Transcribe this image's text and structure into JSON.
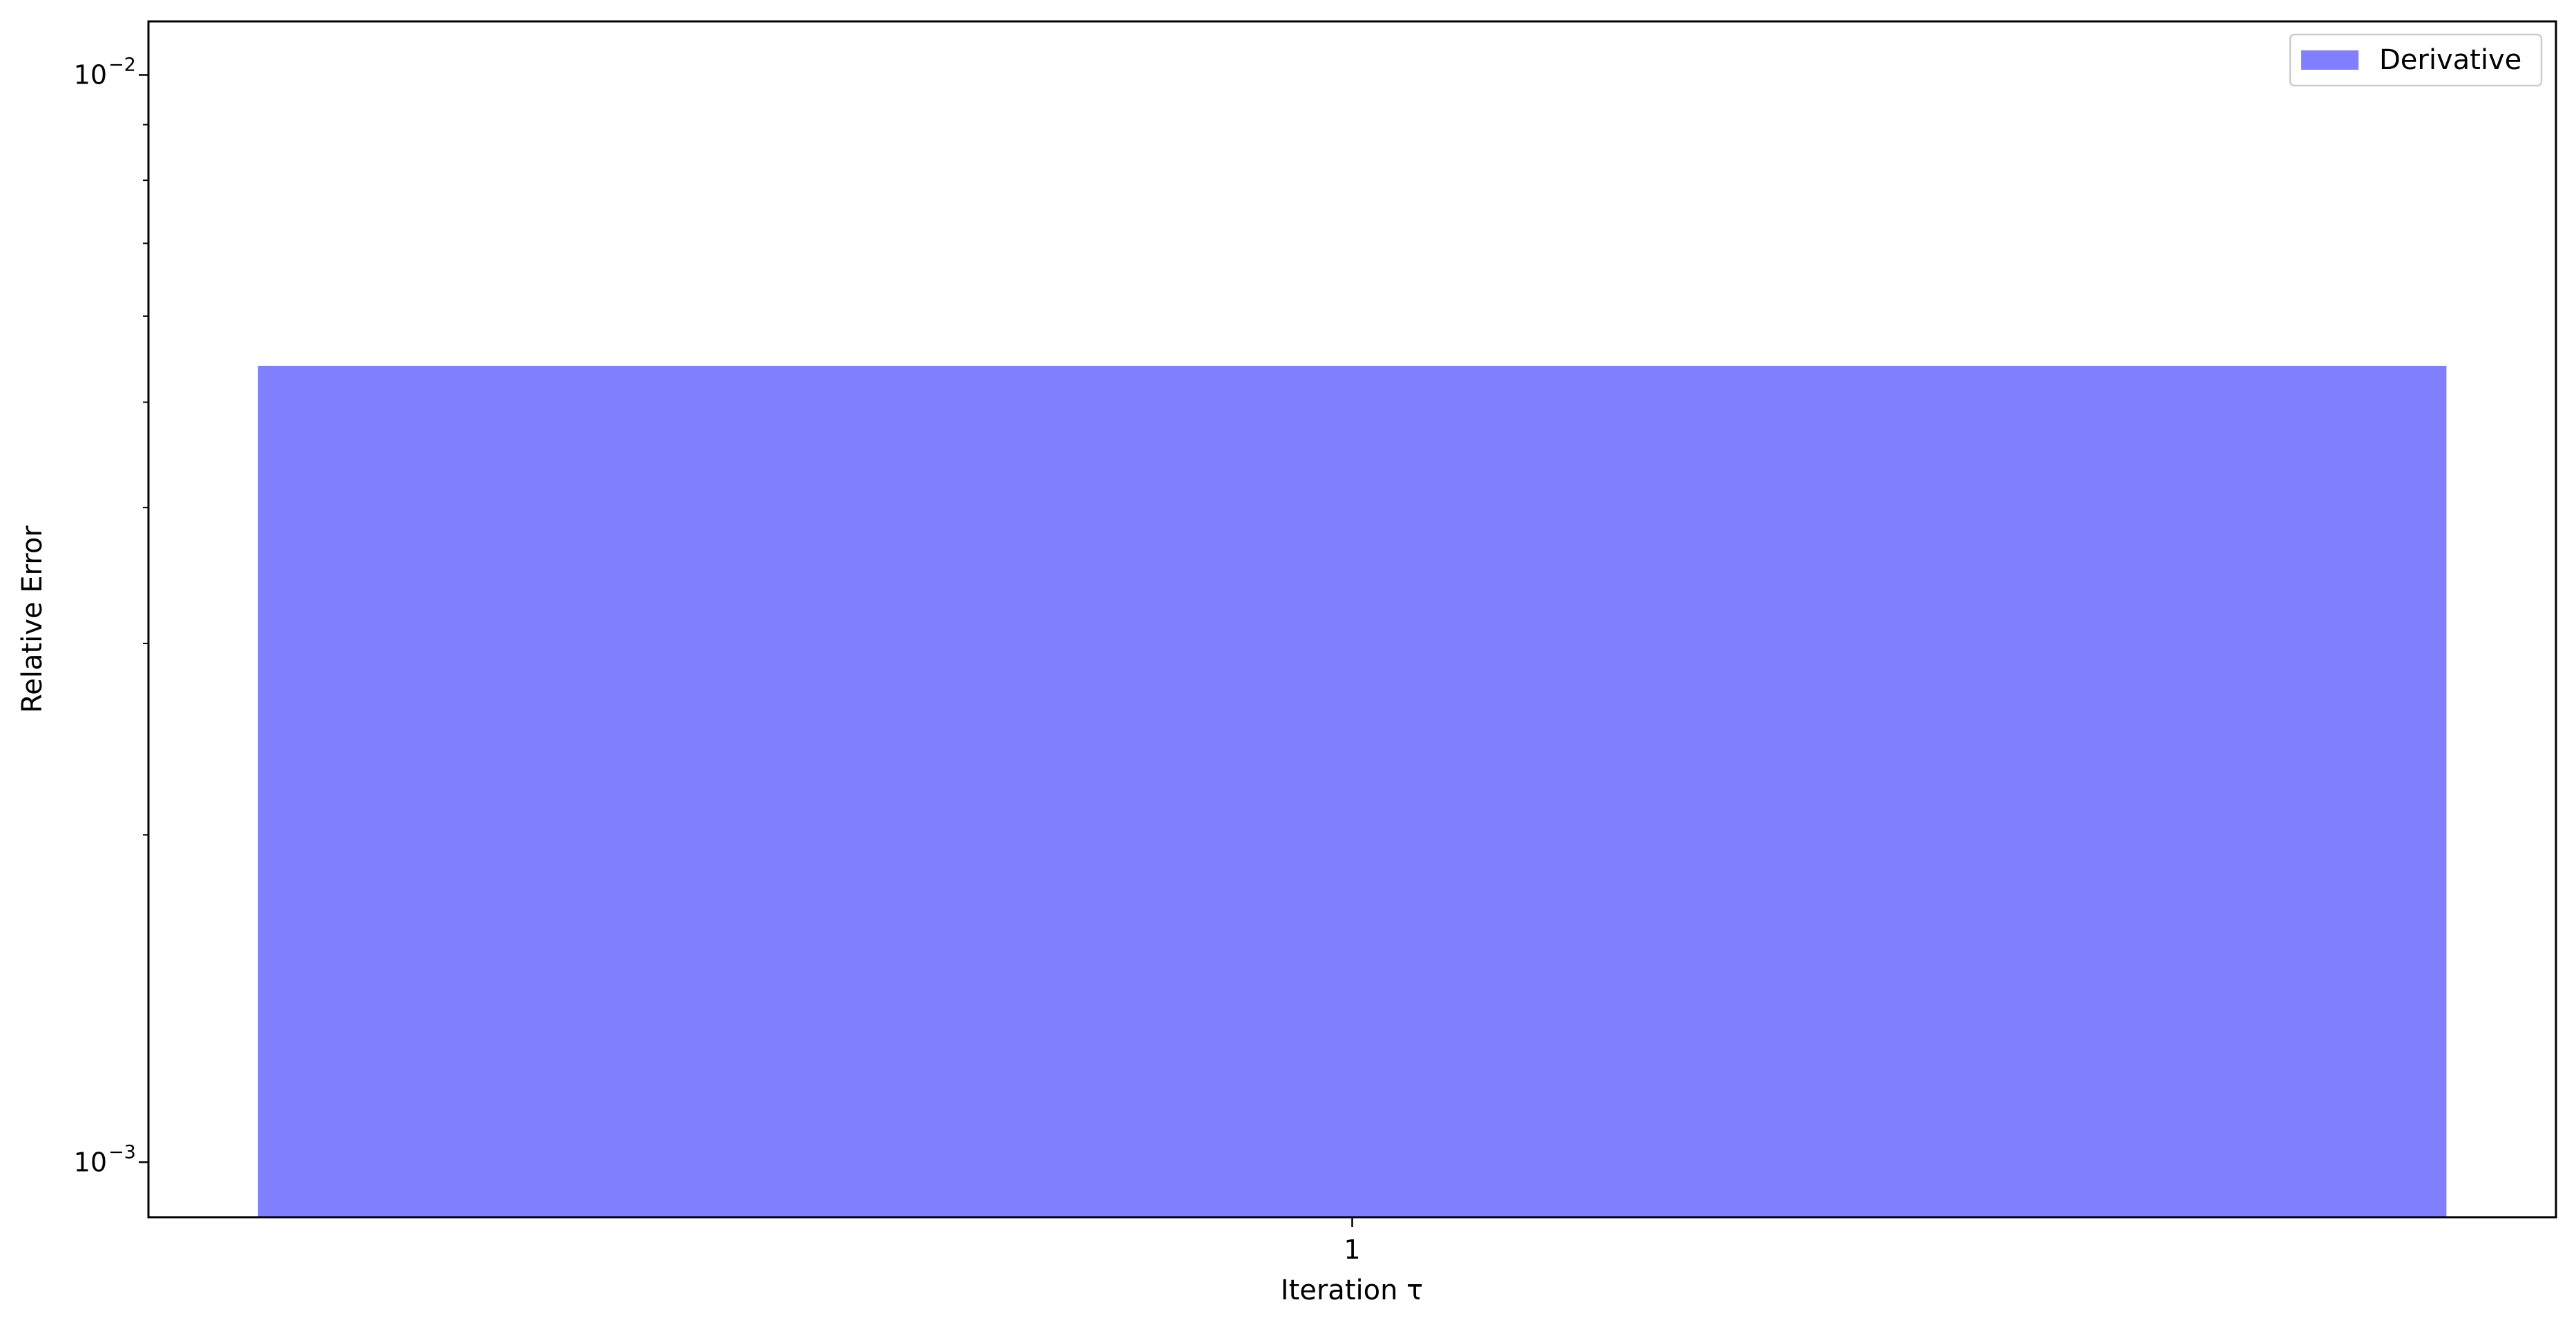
{
  "chart_data": {
    "type": "bar",
    "categories": [
      "1"
    ],
    "series": [
      {
        "name": "Derivative",
        "values": [
          0.0054
        ],
        "color": "#8080ff"
      }
    ],
    "title": "",
    "xlabel": "Iteration τ",
    "ylabel": "Relative Error",
    "yscale": "log",
    "ylim": [
      0.00089,
      0.0112
    ],
    "y_major_ticks": [
      {
        "value": 0.001,
        "base": "10",
        "exp": "−3"
      },
      {
        "value": 0.01,
        "base": "10",
        "exp": "−2"
      }
    ],
    "y_minor_ticks": [
      0.002,
      0.003,
      0.004,
      0.005,
      0.006,
      0.007,
      0.008,
      0.009
    ],
    "grid": false,
    "legend": {
      "position": "top-right",
      "entries": [
        "Derivative"
      ]
    }
  }
}
